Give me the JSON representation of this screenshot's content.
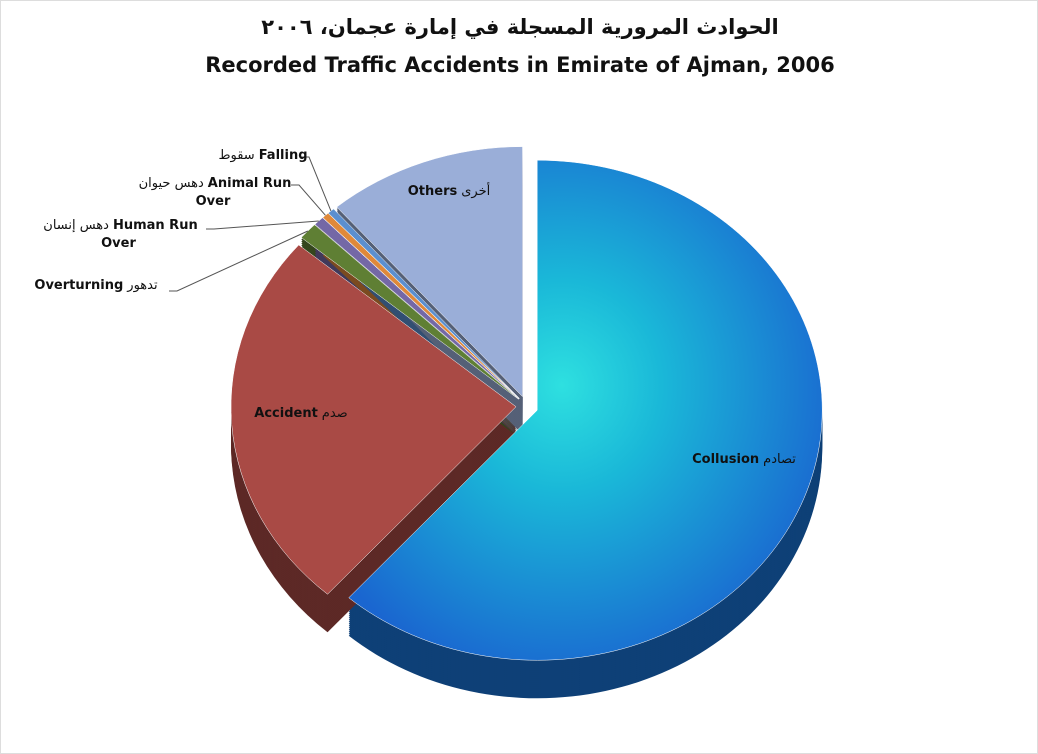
{
  "chart_data": {
    "type": "pie",
    "title": "الحوادث المرورية المسجلة في إمارة عجمان، ٢٠٠٦",
    "subtitle": "Recorded Traffic Accidents in Emirate of Ajman, 2006",
    "categories": [
      "Collusion",
      "Accident",
      "Overturning",
      "Human Run Over",
      "Animal Run Over",
      "Falling",
      "Others"
    ],
    "arabic_labels": [
      "تصادم",
      "صدم",
      "تدهور",
      "دهس إنسان",
      "دهس حيوان",
      "سقوط",
      "أخرى"
    ],
    "values": [
      61.5,
      24.7,
      1.1,
      0.6,
      0.4,
      0.4,
      11.3
    ],
    "colors": [
      "#1a74d8",
      "#a94a45",
      "#5f7f34",
      "#7468a6",
      "#e0893a",
      "#5b8fcf",
      "#9aaed8"
    ]
  }
}
